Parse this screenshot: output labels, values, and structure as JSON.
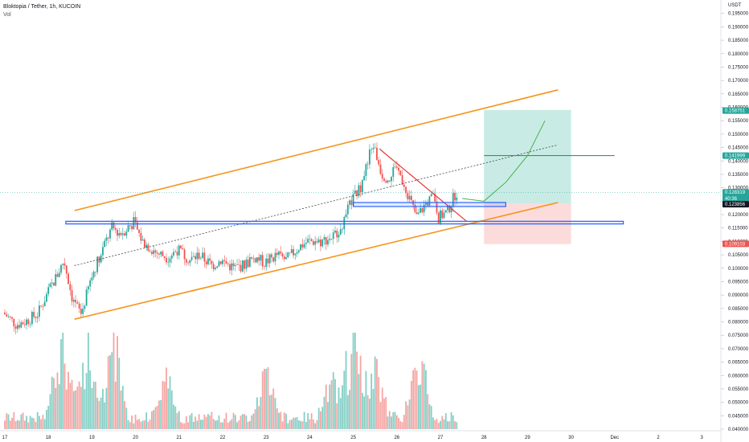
{
  "header": {
    "title": "Bloktopia / Tether, 1h, KUCOIN",
    "sub": "Vol"
  },
  "colors": {
    "up": "#26a69a",
    "down": "#ef5350",
    "vol_up": "#84cfc6",
    "vol_down": "#f5a5a3",
    "channel": "#f7931a",
    "target_line": "#2f9e44",
    "zone_blue": "#2962ff",
    "profit_zone": "#b7e4dc",
    "loss_zone": "#fbd3d2",
    "badge_green": "#26a69a",
    "badge_red": "#ef5350",
    "badge_dark": "#131722"
  },
  "chart_data": {
    "type": "candlestick",
    "title": "Bloktopia / Tether, 1h, KUCOIN",
    "price_axis": {
      "label": "USDT",
      "range": [
        0.04,
        0.2
      ],
      "ticks": [
        "0.195000",
        "0.190000",
        "0.185000",
        "0.180000",
        "0.175000",
        "0.170000",
        "0.165000",
        "0.160000",
        "0.155000",
        "0.150000",
        "0.145000",
        "0.140000",
        "0.135000",
        "0.130000",
        "0.125000",
        "0.120000",
        "0.115000",
        "0.110000",
        "0.105000",
        "0.100000",
        "0.095000",
        "0.090000",
        "0.085000",
        "0.080000",
        "0.075000",
        "0.070000",
        "0.065000",
        "0.060000",
        "0.055000",
        "0.050000",
        "0.045000",
        "0.040000"
      ],
      "badges": [
        {
          "price": 0.158751,
          "text": "0.158751",
          "kind": "green"
        },
        {
          "price": 0.141999,
          "text": "0.141999",
          "kind": "green"
        },
        {
          "price": 0.128319,
          "text": "0.128319",
          "sub": "40:36",
          "kind": "green"
        },
        {
          "price": 0.123856,
          "text": "0.123856",
          "kind": "dark"
        },
        {
          "price": 0.109103,
          "text": "0.109103",
          "kind": "red"
        }
      ]
    },
    "time_axis": {
      "labels": [
        "17",
        "18",
        "19",
        "20",
        "21",
        "22",
        "23",
        "24",
        "25",
        "26",
        "27",
        "28",
        "29",
        "30",
        "Dec",
        "2",
        "3"
      ]
    },
    "series": [
      {
        "name": "price",
        "kind": "candles",
        "anchors": [
          [
            17.0,
            0.0835
          ],
          [
            17.3,
            0.079
          ],
          [
            17.5,
            0.08
          ],
          [
            17.8,
            0.083
          ],
          [
            18.0,
            0.09
          ],
          [
            18.2,
            0.096
          ],
          [
            18.4,
            0.103
          ],
          [
            18.6,
            0.088
          ],
          [
            18.8,
            0.083
          ],
          [
            19.0,
            0.095
          ],
          [
            19.2,
            0.104
          ],
          [
            19.5,
            0.115
          ],
          [
            19.7,
            0.113
          ],
          [
            20.0,
            0.117
          ],
          [
            20.2,
            0.11
          ],
          [
            20.5,
            0.106
          ],
          [
            20.8,
            0.104
          ],
          [
            21.0,
            0.107
          ],
          [
            21.3,
            0.103
          ],
          [
            21.5,
            0.105
          ],
          [
            21.8,
            0.101
          ],
          [
            22.0,
            0.103
          ],
          [
            22.3,
            0.1
          ],
          [
            22.5,
            0.101
          ],
          [
            22.8,
            0.104
          ],
          [
            23.0,
            0.102
          ],
          [
            23.3,
            0.105
          ],
          [
            23.5,
            0.103
          ],
          [
            23.8,
            0.108
          ],
          [
            24.0,
            0.11
          ],
          [
            24.3,
            0.11
          ],
          [
            24.6,
            0.112
          ],
          [
            24.8,
            0.117
          ],
          [
            25.0,
            0.125
          ],
          [
            25.2,
            0.13
          ],
          [
            25.4,
            0.142
          ],
          [
            25.5,
            0.146
          ],
          [
            25.7,
            0.135
          ],
          [
            25.9,
            0.133
          ],
          [
            26.0,
            0.139
          ],
          [
            26.2,
            0.132
          ],
          [
            26.4,
            0.123
          ],
          [
            26.5,
            0.119
          ],
          [
            26.7,
            0.124
          ],
          [
            26.9,
            0.127
          ],
          [
            27.0,
            0.119
          ],
          [
            27.2,
            0.121
          ],
          [
            27.4,
            0.1283
          ]
        ]
      },
      {
        "name": "volume",
        "kind": "bars",
        "range": [
          0.0,
          1.0
        ]
      }
    ],
    "drawings": {
      "channel_upper": [
        [
          18.6,
          0.1215
        ],
        [
          29.7,
          0.1665
        ]
      ],
      "channel_lower": [
        [
          18.6,
          0.081
        ],
        [
          29.7,
          0.1245
        ]
      ],
      "dashed_midline": [
        [
          18.6,
          0.101
        ],
        [
          29.7,
          0.146
        ]
      ],
      "target_line": [
        [
          28.0,
          0.142
        ],
        [
          31.0,
          0.142
        ]
      ],
      "red_trend": [
        [
          25.6,
          0.1445
        ],
        [
          27.6,
          0.1175
        ]
      ],
      "blue_zone_a": [
        [
          25.0,
          0.1245
        ],
        [
          28.5,
          0.123
        ]
      ],
      "blue_zone_b": [
        [
          18.4,
          0.1175
        ],
        [
          31.2,
          0.1165
        ]
      ],
      "profit_zone": [
        [
          28.0,
          0.159
        ],
        [
          30.0,
          0.124
        ]
      ],
      "loss_zone": [
        [
          28.0,
          0.124
        ],
        [
          30.0,
          0.109
        ]
      ],
      "projection": [
        [
          27.5,
          0.126
        ],
        [
          28.0,
          0.125
        ],
        [
          28.5,
          0.132
        ],
        [
          29.0,
          0.142
        ],
        [
          29.4,
          0.155
        ]
      ]
    }
  }
}
